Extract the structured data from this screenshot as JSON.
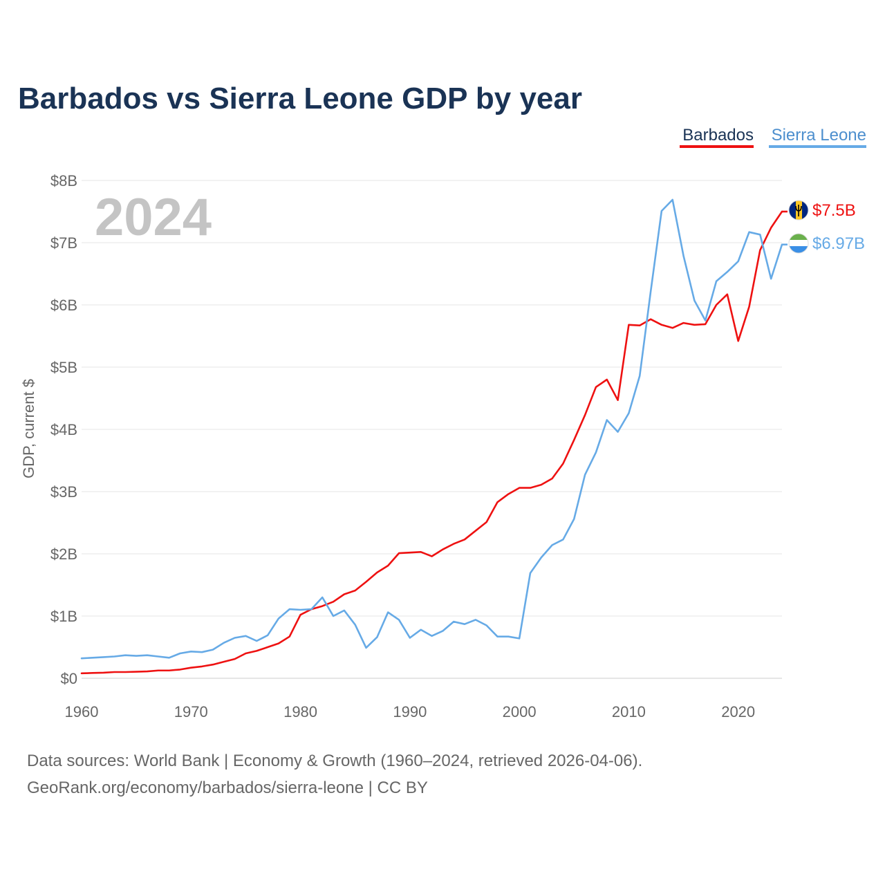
{
  "title": "Barbados vs Sierra Leone GDP by year",
  "current_year": "2024",
  "colors": {
    "barbados": "#ee1111",
    "sierra_leone": "#66aae6",
    "title": "#1a3355",
    "muted": "#666666",
    "year_watermark": "#c4c4c4",
    "grid": "#e6e6e6"
  },
  "legend": [
    {
      "name": "Barbados",
      "color": "#ee1111"
    },
    {
      "name": "Sierra Leone",
      "color": "#66aae6"
    }
  ],
  "end_labels": {
    "barbados": "$7.5B",
    "sierra_leone": "$6.97B"
  },
  "flags": {
    "barbados": "barbados-flag-icon",
    "sierra_leone": "sierra-leone-flag-icon"
  },
  "sources": {
    "line1": "Data sources: World Bank | Economy & Growth (1960–2024, retrieved 2026-04-06).",
    "line2": "GeoRank.org/economy/barbados/sierra-leone | CC BY"
  },
  "chart_data": {
    "type": "line",
    "title": "Barbados vs Sierra Leone GDP by year",
    "xlabel": "",
    "ylabel": "GDP, current $",
    "x": [
      1960,
      1961,
      1962,
      1963,
      1964,
      1965,
      1966,
      1967,
      1968,
      1969,
      1970,
      1971,
      1972,
      1973,
      1974,
      1975,
      1976,
      1977,
      1978,
      1979,
      1980,
      1981,
      1982,
      1983,
      1984,
      1985,
      1986,
      1987,
      1988,
      1989,
      1990,
      1991,
      1992,
      1993,
      1994,
      1995,
      1996,
      1997,
      1998,
      1999,
      2000,
      2001,
      2002,
      2003,
      2004,
      2005,
      2006,
      2007,
      2008,
      2009,
      2010,
      2011,
      2012,
      2013,
      2014,
      2015,
      2016,
      2017,
      2018,
      2019,
      2020,
      2021,
      2022,
      2023,
      2024
    ],
    "xlim": [
      1960,
      2024
    ],
    "ylim": [
      0,
      8
    ],
    "x_ticks": [
      1960,
      1970,
      1980,
      1990,
      2000,
      2010,
      2020
    ],
    "x_tick_labels": [
      "1960",
      "1970",
      "1980",
      "1990",
      "2000",
      "2010",
      "2020"
    ],
    "y_ticks": [
      0,
      1,
      2,
      3,
      4,
      5,
      6,
      7,
      8
    ],
    "y_tick_labels": [
      "$0",
      "$1B",
      "$2B",
      "$3B",
      "$4B",
      "$5B",
      "$6B",
      "$7B",
      "$8B"
    ],
    "units": "billions of current US$",
    "grid": true,
    "legend_position": "top-right",
    "series": [
      {
        "name": "Barbados",
        "color": "#ee1111",
        "values": [
          0.08,
          0.085,
          0.09,
          0.1,
          0.1,
          0.105,
          0.11,
          0.125,
          0.125,
          0.14,
          0.17,
          0.19,
          0.22,
          0.265,
          0.31,
          0.4,
          0.44,
          0.5,
          0.56,
          0.67,
          1.02,
          1.11,
          1.16,
          1.23,
          1.35,
          1.41,
          1.55,
          1.7,
          1.81,
          2.01,
          2.02,
          2.03,
          1.96,
          2.07,
          2.16,
          2.23,
          2.37,
          2.51,
          2.83,
          2.96,
          3.06,
          3.06,
          3.11,
          3.21,
          3.45,
          3.83,
          4.23,
          4.68,
          4.8,
          4.47,
          5.68,
          5.67,
          5.77,
          5.68,
          5.63,
          5.71,
          5.68,
          5.69,
          6.0,
          6.17,
          5.42,
          5.97,
          6.88,
          7.24,
          7.5
        ]
      },
      {
        "name": "Sierra Leone",
        "color": "#66aae6",
        "values": [
          0.32,
          0.33,
          0.34,
          0.35,
          0.37,
          0.36,
          0.37,
          0.35,
          0.33,
          0.4,
          0.43,
          0.42,
          0.46,
          0.57,
          0.65,
          0.68,
          0.6,
          0.69,
          0.96,
          1.11,
          1.1,
          1.11,
          1.3,
          1.0,
          1.09,
          0.86,
          0.49,
          0.66,
          1.06,
          0.94,
          0.65,
          0.78,
          0.68,
          0.76,
          0.91,
          0.87,
          0.94,
          0.85,
          0.67,
          0.67,
          0.64,
          1.69,
          1.94,
          2.14,
          2.23,
          2.56,
          3.27,
          3.63,
          4.15,
          3.96,
          4.26,
          4.86,
          6.21,
          7.51,
          7.69,
          6.79,
          6.07,
          5.75,
          6.38,
          6.53,
          6.7,
          7.17,
          7.13,
          6.42,
          6.97
        ]
      }
    ]
  }
}
